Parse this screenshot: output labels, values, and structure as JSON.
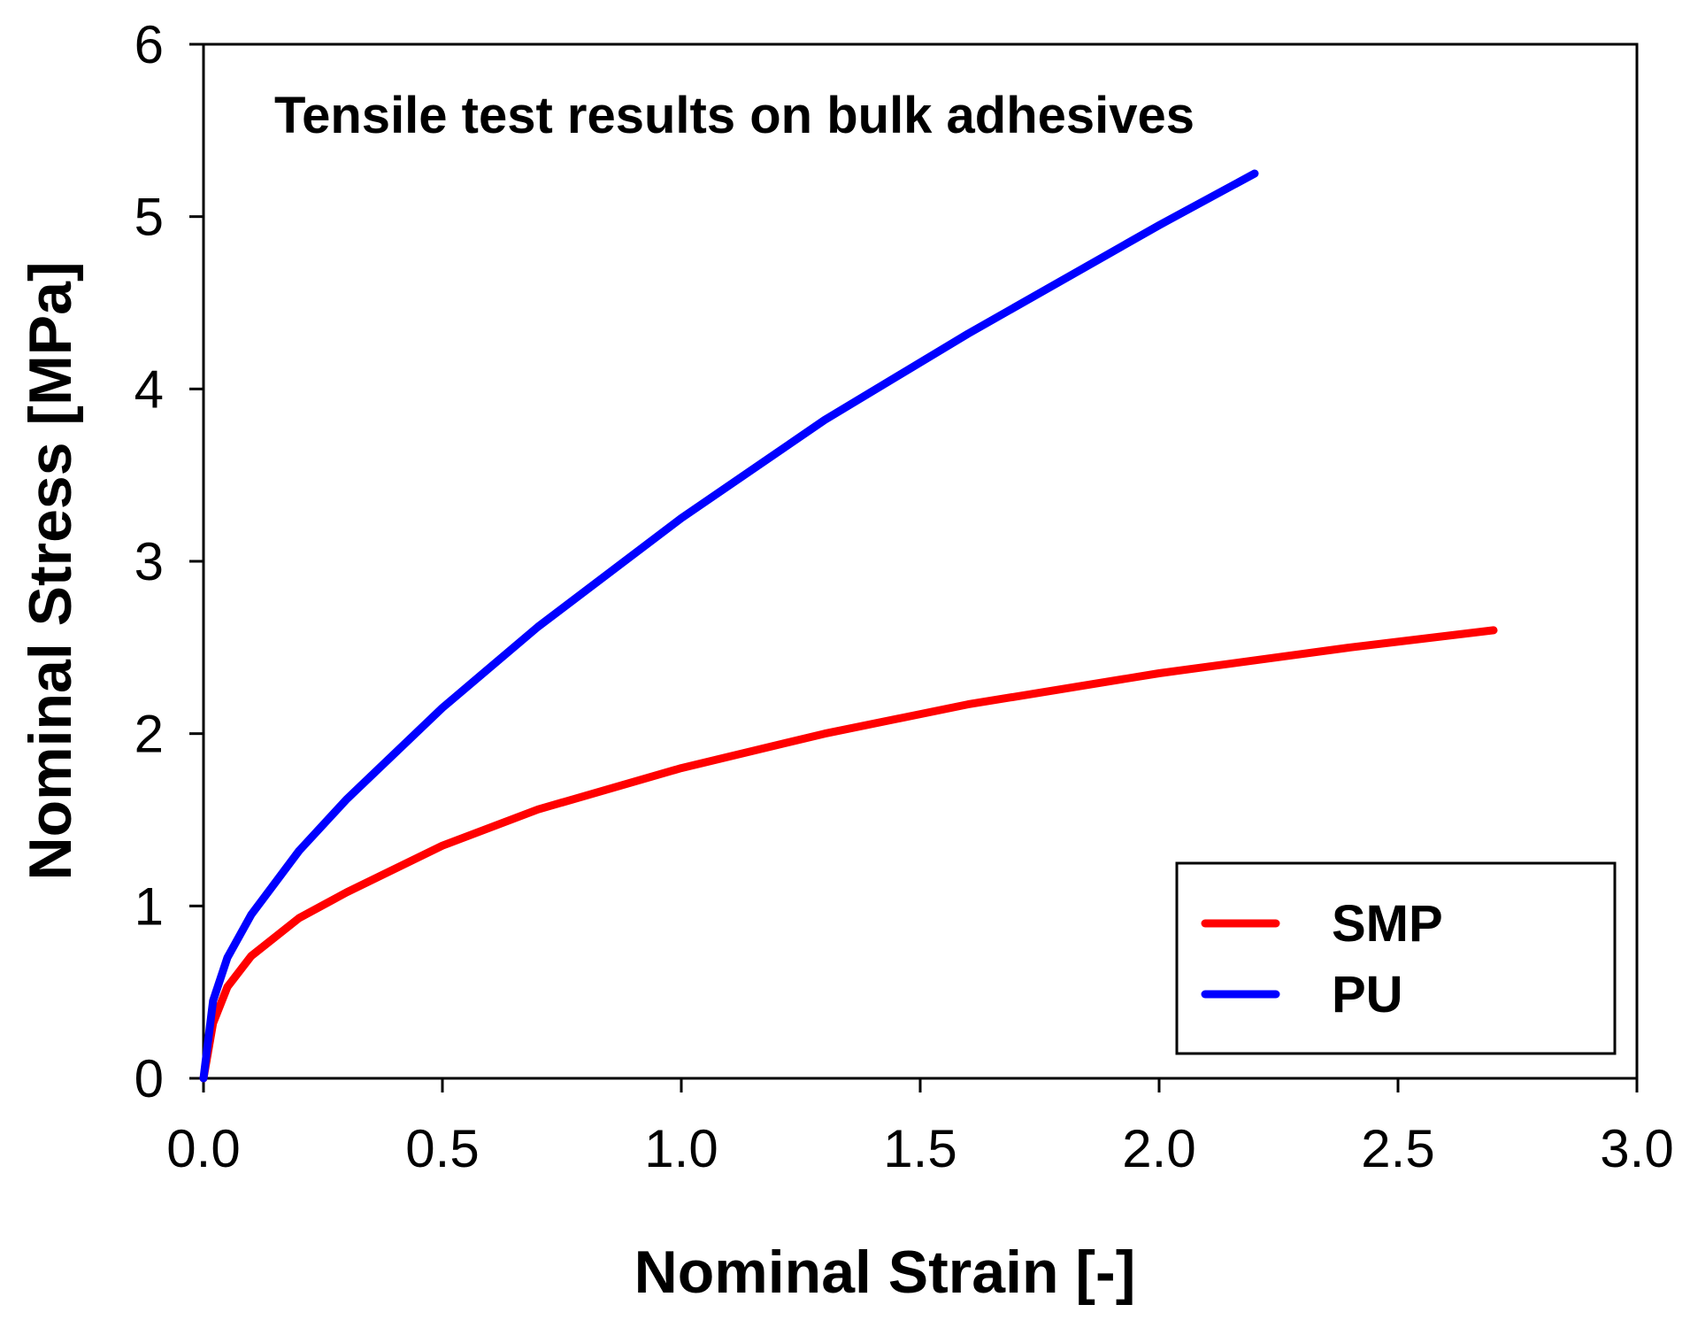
{
  "chart_data": {
    "type": "line",
    "title": "Tensile test results on bulk adhesives",
    "xlabel": "Nominal Strain [-]",
    "ylabel": "Nominal Stress [MPa]",
    "xlim": [
      0,
      3.0
    ],
    "ylim": [
      0,
      6
    ],
    "xticks": [
      "0.0",
      "0.5",
      "1.0",
      "1.5",
      "2.0",
      "2.5",
      "3.0"
    ],
    "yticks": [
      "0",
      "1",
      "2",
      "3",
      "4",
      "5",
      "6"
    ],
    "grid": false,
    "legend_position": "bottom-right",
    "series": [
      {
        "name": "SMP",
        "color": "#ff0000",
        "x": [
          0,
          0.02,
          0.05,
          0.1,
          0.2,
          0.3,
          0.5,
          0.7,
          1.0,
          1.3,
          1.6,
          2.0,
          2.4,
          2.7
        ],
        "y": [
          0,
          0.32,
          0.53,
          0.71,
          0.93,
          1.08,
          1.35,
          1.56,
          1.8,
          2.0,
          2.17,
          2.35,
          2.5,
          2.6
        ]
      },
      {
        "name": "PU",
        "color": "#0000ff",
        "x": [
          0,
          0.02,
          0.05,
          0.1,
          0.2,
          0.3,
          0.5,
          0.7,
          1.0,
          1.3,
          1.6,
          2.0,
          2.2
        ],
        "y": [
          0,
          0.45,
          0.7,
          0.95,
          1.32,
          1.62,
          2.15,
          2.62,
          3.25,
          3.82,
          4.32,
          4.95,
          5.25
        ]
      }
    ]
  }
}
